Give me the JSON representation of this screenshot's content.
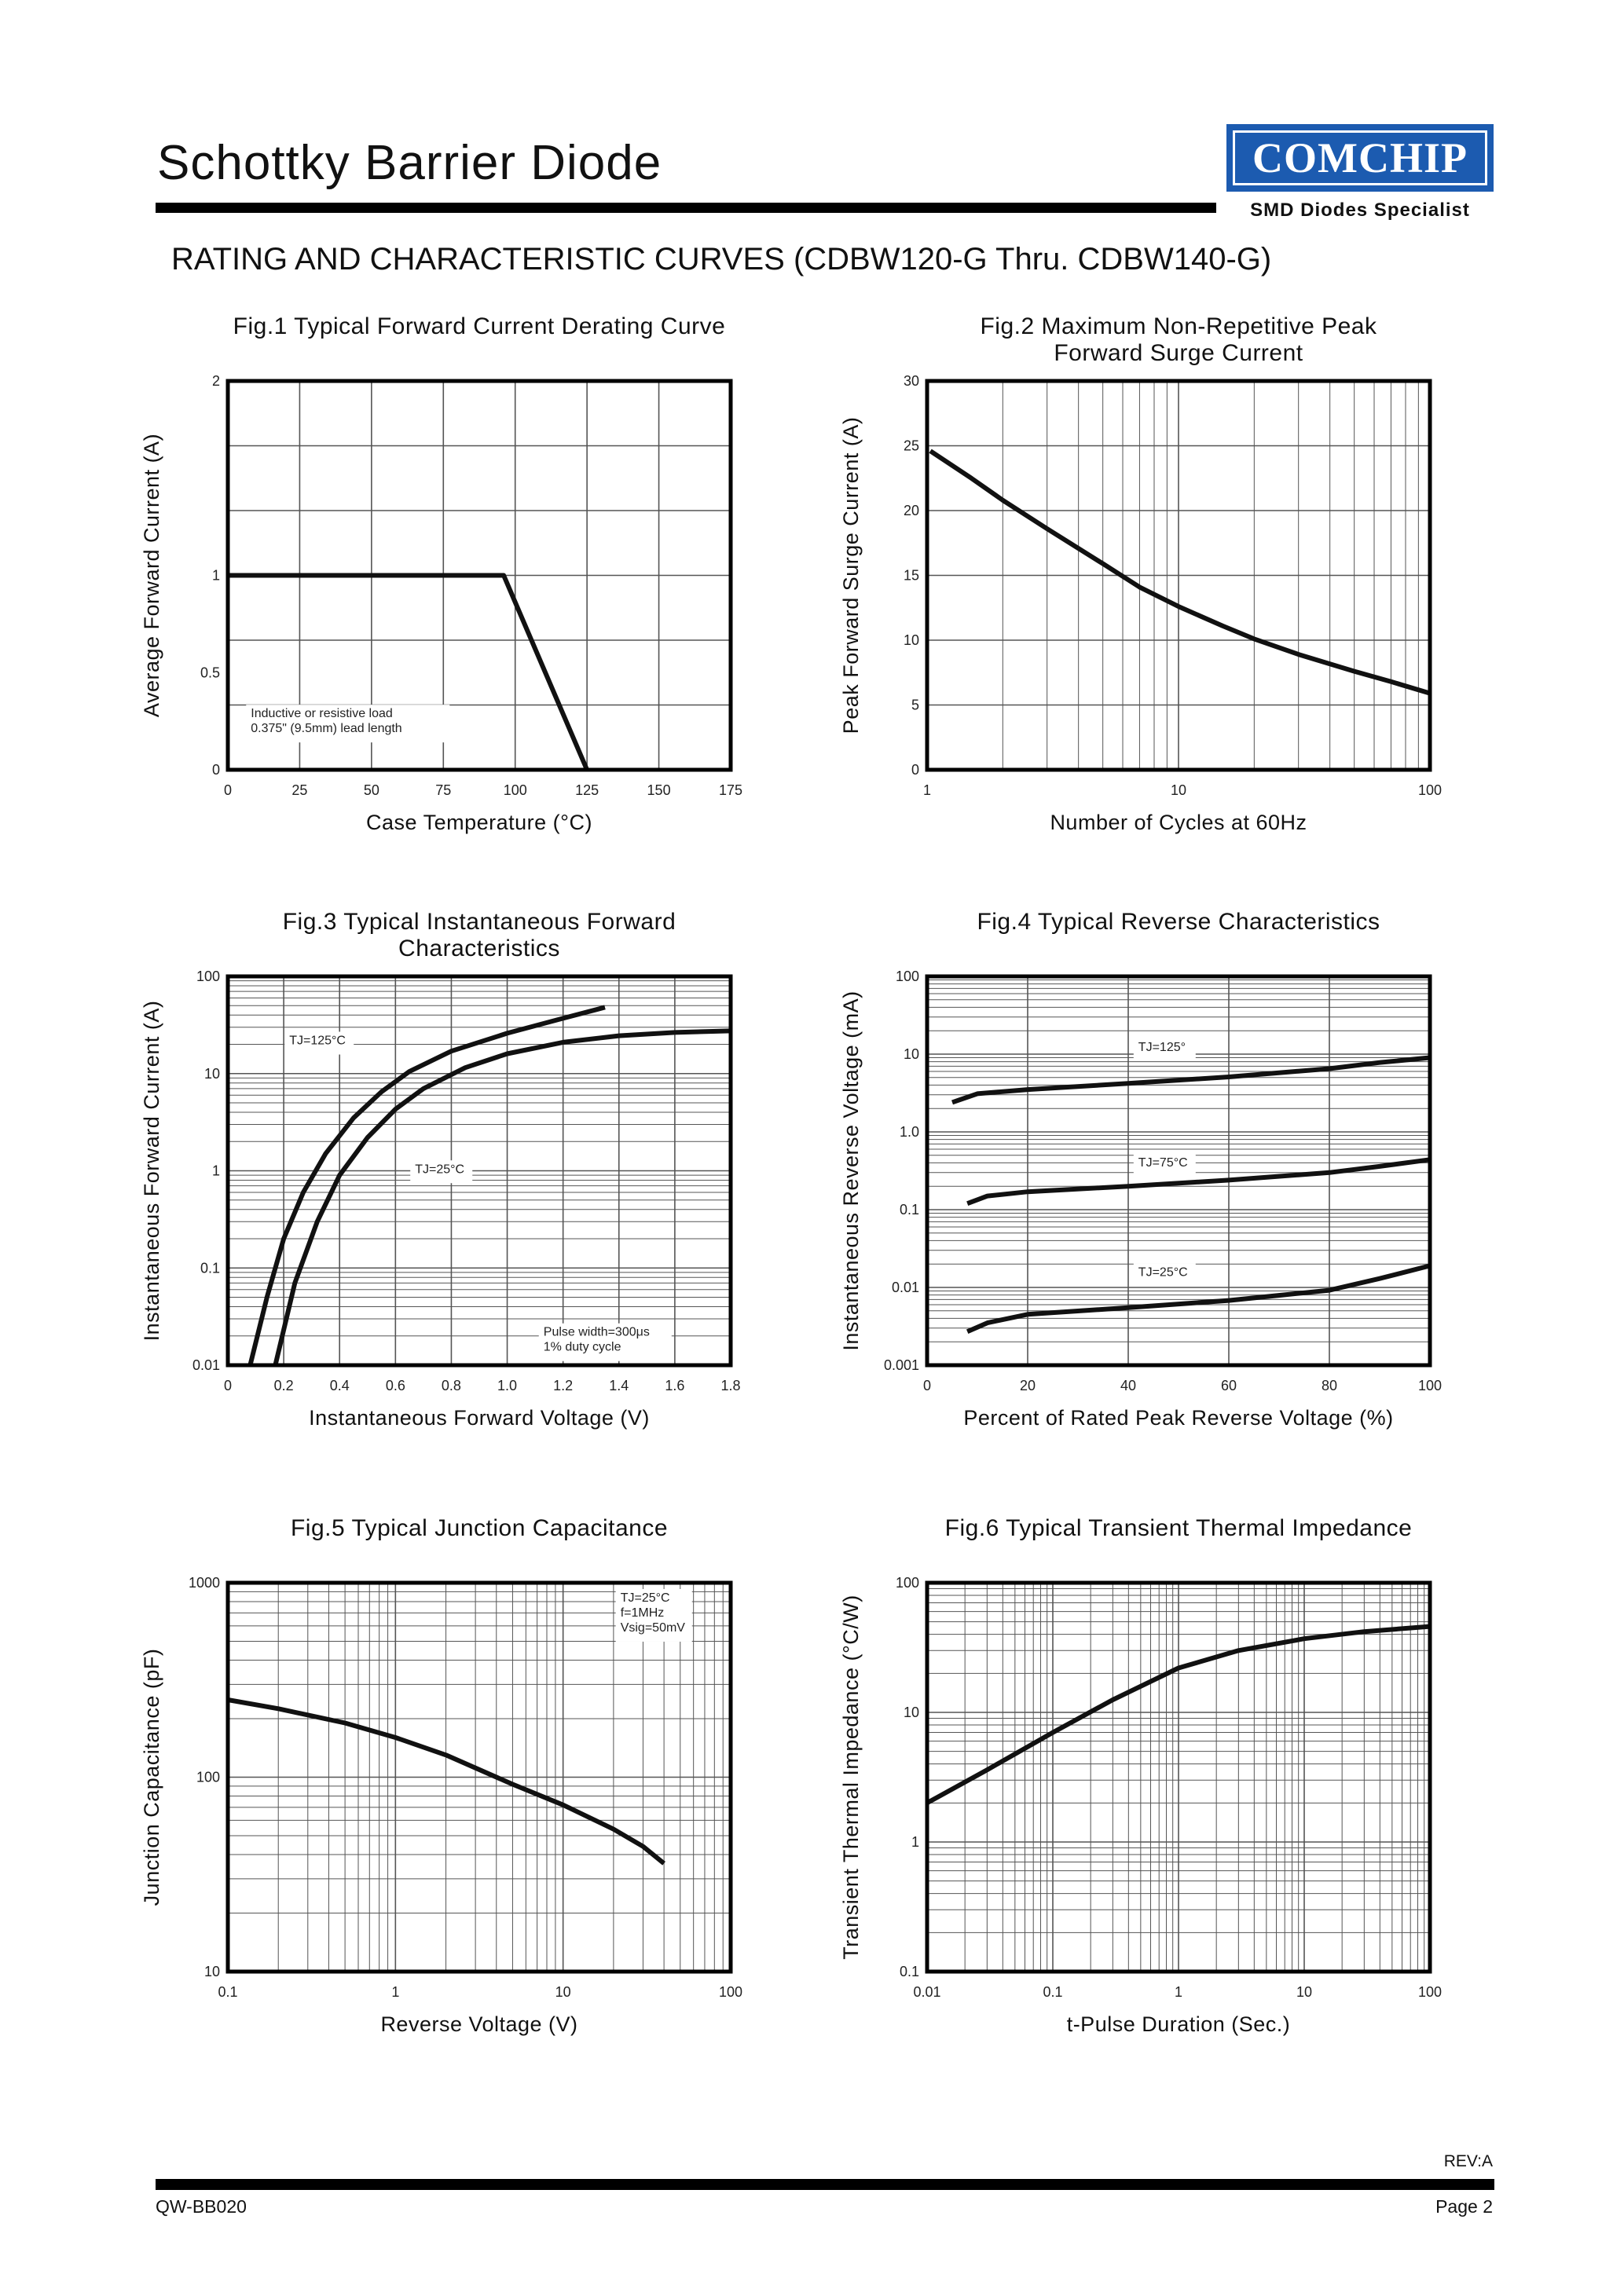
{
  "header": {
    "title": "Schottky Barrier Diode",
    "logo_text": "COMCHIP",
    "logo_tagline": "SMD Diodes Specialist",
    "subtitle": "RATING AND CHARACTERISTIC CURVES (CDBW120-G Thru. CDBW140-G)"
  },
  "footer": {
    "rev": "REV:A",
    "doc_number": "QW-BB020",
    "page": "Page 2"
  },
  "colors": {
    "logo_blue": "#1c5bb0",
    "ink": "#000000",
    "grid": "#555555"
  },
  "chart_data": [
    {
      "id": "fig1",
      "type": "line",
      "title": [
        "Fig.1 Typical Forward Current Derating Curve"
      ],
      "xlabel": "Case Temperature (°C)",
      "ylabel": "Average Forward Current (A)",
      "xscale": "linear",
      "yscale": "linear",
      "xlim": [
        0,
        175
      ],
      "ylim": [
        0,
        2
      ],
      "xticks": [
        0,
        25,
        50,
        75,
        100,
        125,
        150,
        175
      ],
      "xtick_labels": [
        "0",
        "25",
        "50",
        "75",
        "100",
        "125",
        "150",
        "175"
      ],
      "yticks": [
        0,
        0.5,
        1,
        2
      ],
      "ytick_labels": [
        "0",
        "0.5",
        "1",
        "2"
      ],
      "grid": true,
      "series": [
        {
          "name": "derating",
          "x": [
            0,
            96,
            125
          ],
          "y": [
            1,
            1,
            0
          ]
        }
      ],
      "annotations": [
        {
          "lines": [
            "Inductive or resistive load",
            "0.375\" (9.5mm) lead length"
          ],
          "x": 8,
          "y": 0.27
        }
      ]
    },
    {
      "id": "fig2",
      "type": "line",
      "title": [
        "Fig.2 Maximum Non-Repetitive Peak",
        "Forward Surge Current"
      ],
      "xlabel": "Number of Cycles at 60Hz",
      "ylabel": "Peak Forward Surge Current (A)",
      "xscale": "log",
      "yscale": "linear",
      "xlim": [
        1,
        100
      ],
      "ylim": [
        0,
        30
      ],
      "xticks": [
        1,
        10,
        100
      ],
      "xtick_labels": [
        "1",
        "10",
        "100"
      ],
      "yticks": [
        0,
        5,
        10,
        15,
        20,
        25,
        30
      ],
      "ytick_labels": [
        "0",
        "5",
        "10",
        "15",
        "20",
        "25",
        "30"
      ],
      "grid": true,
      "series": [
        {
          "name": "surge",
          "x": [
            1.03,
            1.5,
            2,
            3,
            5,
            7,
            10,
            15,
            20,
            30,
            50,
            70,
            100
          ],
          "y": [
            24.6,
            22.5,
            20.8,
            18.6,
            15.9,
            14.1,
            12.6,
            11.1,
            10.1,
            8.9,
            7.6,
            6.8,
            5.9
          ]
        }
      ],
      "annotations": []
    },
    {
      "id": "fig3",
      "type": "line",
      "title": [
        "Fig.3 Typical Instantaneous Forward",
        "Characteristics"
      ],
      "xlabel": "Instantaneous Forward Voltage (V)",
      "ylabel": "Instantaneous Forward Current (A)",
      "xscale": "linear",
      "yscale": "log",
      "xlim": [
        0,
        1.8
      ],
      "ylim": [
        0.01,
        100
      ],
      "xticks": [
        0,
        0.2,
        0.4,
        0.6,
        0.8,
        1.0,
        1.2,
        1.4,
        1.6,
        1.8
      ],
      "xtick_labels": [
        "0",
        "0.2",
        "0.4",
        "0.6",
        "0.8",
        "1.0",
        "1.2",
        "1.4",
        "1.6",
        "1.8"
      ],
      "yticks": [
        0.01,
        0.1,
        1,
        10,
        100
      ],
      "ytick_labels": [
        "0.01",
        "0.1",
        "1",
        "10",
        "100"
      ],
      "grid": true,
      "series": [
        {
          "name": "TJ=125°C",
          "x": [
            0.08,
            0.14,
            0.2,
            0.27,
            0.35,
            0.45,
            0.55,
            0.65,
            0.8,
            1.0,
            1.2,
            1.35
          ],
          "y": [
            0.01,
            0.05,
            0.2,
            0.6,
            1.5,
            3.5,
            6.5,
            10.5,
            17,
            26,
            37,
            48
          ]
        },
        {
          "name": "TJ=25°C",
          "x": [
            0.17,
            0.24,
            0.32,
            0.4,
            0.5,
            0.6,
            0.7,
            0.85,
            1.0,
            1.2,
            1.4,
            1.6,
            1.8
          ],
          "y": [
            0.01,
            0.07,
            0.3,
            0.9,
            2.2,
            4.3,
            7,
            11.5,
            16,
            21,
            24.5,
            26.5,
            27.5
          ]
        }
      ],
      "annotations": [
        {
          "lines": [
            "TJ=125°C"
          ],
          "x": 0.22,
          "y": 20
        },
        {
          "lines": [
            "TJ=25°C"
          ],
          "x": 0.67,
          "y": 0.95
        },
        {
          "lines": [
            "Pulse width=300μs",
            "1% duty cycle"
          ],
          "x": 1.13,
          "y": 0.02
        }
      ]
    },
    {
      "id": "fig4",
      "type": "line",
      "title": [
        "Fig.4 Typical Reverse Characteristics"
      ],
      "xlabel": "Percent of Rated Peak Reverse Voltage (%)",
      "ylabel": "Instantaneous Reverse Voltage (mA)",
      "xscale": "linear",
      "yscale": "log",
      "xlim": [
        0,
        100
      ],
      "ylim": [
        0.001,
        100
      ],
      "xticks": [
        0,
        20,
        40,
        60,
        80,
        100
      ],
      "xtick_labels": [
        "0",
        "20",
        "40",
        "60",
        "80",
        "100"
      ],
      "yticks": [
        0.001,
        0.01,
        0.1,
        1,
        10,
        100
      ],
      "ytick_labels": [
        "0.001",
        "0.01",
        "0.1",
        "1.0",
        "10",
        "100"
      ],
      "grid": true,
      "series": [
        {
          "name": "TJ=125°",
          "x": [
            5,
            10,
            20,
            40,
            60,
            80,
            90,
            100
          ],
          "y": [
            2.4,
            3.1,
            3.5,
            4.2,
            5.1,
            6.5,
            7.8,
            9.0
          ]
        },
        {
          "name": "TJ=75°C",
          "x": [
            8,
            12,
            20,
            40,
            60,
            80,
            90,
            100
          ],
          "y": [
            0.12,
            0.15,
            0.17,
            0.2,
            0.24,
            0.3,
            0.36,
            0.44
          ]
        },
        {
          "name": "TJ=25°C",
          "x": [
            8,
            12,
            20,
            40,
            60,
            80,
            90,
            100
          ],
          "y": [
            0.0027,
            0.0035,
            0.0045,
            0.0055,
            0.0068,
            0.0092,
            0.013,
            0.019
          ]
        }
      ],
      "annotations": [
        {
          "lines": [
            "TJ=125°"
          ],
          "x": 42,
          "y": 11
        },
        {
          "lines": [
            "TJ=75°C"
          ],
          "x": 42,
          "y": 0.36
        },
        {
          "lines": [
            "TJ=25°C"
          ],
          "x": 42,
          "y": 0.014
        }
      ]
    },
    {
      "id": "fig5",
      "type": "line",
      "title": [
        "Fig.5 Typical Junction Capacitance"
      ],
      "xlabel": "Reverse Voltage (V)",
      "ylabel": "Junction Capacitance (pF)",
      "xscale": "log",
      "yscale": "log",
      "xlim": [
        0.1,
        100
      ],
      "ylim": [
        10,
        1000
      ],
      "xticks": [
        0.1,
        1,
        10,
        100
      ],
      "xtick_labels": [
        "0.1",
        "1",
        "10",
        "100"
      ],
      "yticks": [
        10,
        100,
        1000
      ],
      "ytick_labels": [
        "10",
        "100",
        "1000"
      ],
      "grid": true,
      "series": [
        {
          "name": "capacitance",
          "x": [
            0.1,
            0.2,
            0.5,
            1,
            2,
            5,
            10,
            20,
            30,
            40
          ],
          "y": [
            250,
            225,
            190,
            160,
            130,
            92,
            72,
            54,
            44,
            36
          ]
        }
      ],
      "annotations": [
        {
          "lines": [
            "TJ=25°C",
            "f=1MHz",
            "Vsig=50mV"
          ],
          "x": 22,
          "y": 800
        }
      ]
    },
    {
      "id": "fig6",
      "type": "line",
      "title": [
        "Fig.6 Typical Transient Thermal Impedance"
      ],
      "xlabel": "t-Pulse Duration (Sec.)",
      "ylabel": "Transient Thermal Impedance (°C/W)",
      "xscale": "log",
      "yscale": "log",
      "xlim": [
        0.01,
        100
      ],
      "ylim": [
        0.1,
        100
      ],
      "xticks": [
        0.01,
        0.1,
        1,
        10,
        100
      ],
      "xtick_labels": [
        "0.01",
        "0.1",
        "1",
        "10",
        "100"
      ],
      "yticks": [
        0.1,
        1,
        10,
        100
      ],
      "ytick_labels": [
        "0.1",
        "1",
        "10",
        "100"
      ],
      "grid": true,
      "series": [
        {
          "name": "thermal",
          "x": [
            0.01,
            0.03,
            0.1,
            0.3,
            1,
            3,
            10,
            30,
            100
          ],
          "y": [
            2.0,
            3.6,
            7.0,
            12.5,
            22,
            30,
            37,
            42,
            46
          ]
        }
      ],
      "annotations": []
    }
  ]
}
